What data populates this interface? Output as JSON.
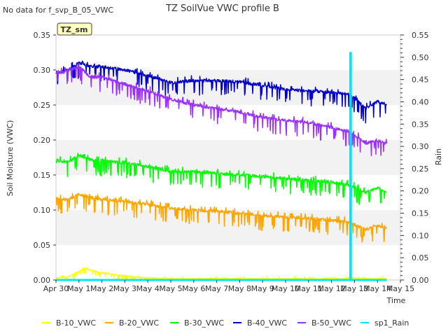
{
  "chart_data": {
    "type": "line",
    "title": "TZ SoilVue VWC profile B",
    "note": "No data for f_svp_B_05_VWC",
    "badge": "TZ_sm",
    "xlabel": "Time",
    "ylabel": "Soil Moisture (VWC)",
    "y2label": "Rain",
    "xlim": [
      0,
      15
    ],
    "ylim": [
      0,
      0.35
    ],
    "y2lim": [
      0,
      0.55
    ],
    "x_ticks": [
      "Apr 30",
      "May 1",
      "May 2",
      "May 3",
      "May 4",
      "May 5",
      "May 6",
      "May 7",
      "May 8",
      "May 9",
      "May 10",
      "May 11",
      "May 12",
      "May 13",
      "May 14",
      "May 15"
    ],
    "y_ticks": [
      "0.00",
      "0.05",
      "0.10",
      "0.15",
      "0.20",
      "0.25",
      "0.30",
      "0.35"
    ],
    "y2_ticks": [
      "0.00",
      "0.05",
      "0.10",
      "0.15",
      "0.20",
      "0.25",
      "0.30",
      "0.35",
      "0.40",
      "0.45",
      "0.50",
      "0.55"
    ],
    "grid": "horizontal bands",
    "legend_position": "bottom",
    "series": [
      {
        "name": "B-10_VWC",
        "color": "#ffff00",
        "axis": "left",
        "x": [
          0.0,
          0.5,
          1.0,
          1.2,
          1.5,
          2.0,
          2.5,
          3.0,
          3.5,
          4.0,
          5.0,
          6.0,
          8.0,
          10.0,
          12.0,
          14.4
        ],
        "y": [
          0.003,
          0.004,
          0.012,
          0.017,
          0.014,
          0.01,
          0.008,
          0.006,
          0.004,
          0.003,
          0.002,
          0.002,
          0.002,
          0.002,
          0.002,
          0.002
        ]
      },
      {
        "name": "B-20_VWC",
        "color": "#ffa500",
        "axis": "left",
        "x": [
          0.0,
          0.5,
          1.0,
          1.5,
          2.0,
          3.0,
          4.0,
          5.0,
          6.0,
          7.0,
          8.0,
          9.0,
          10.0,
          11.0,
          12.0,
          12.8,
          13.5,
          14.0,
          14.4
        ],
        "y": [
          0.117,
          0.115,
          0.122,
          0.118,
          0.115,
          0.112,
          0.108,
          0.102,
          0.1,
          0.098,
          0.095,
          0.092,
          0.09,
          0.088,
          0.085,
          0.082,
          0.072,
          0.078,
          0.075
        ]
      },
      {
        "name": "B-30_VWC",
        "color": "#00ff00",
        "axis": "left",
        "x": [
          0.0,
          0.5,
          1.0,
          1.5,
          2.0,
          3.0,
          4.0,
          5.0,
          6.0,
          7.0,
          8.0,
          9.0,
          10.0,
          11.0,
          12.0,
          12.8,
          13.5,
          14.0,
          14.4
        ],
        "y": [
          0.17,
          0.168,
          0.178,
          0.172,
          0.17,
          0.168,
          0.162,
          0.155,
          0.155,
          0.152,
          0.15,
          0.148,
          0.145,
          0.142,
          0.14,
          0.135,
          0.125,
          0.132,
          0.125
        ]
      },
      {
        "name": "B-40_VWC",
        "color": "#0000cd",
        "axis": "left",
        "x": [
          0.0,
          0.5,
          1.0,
          1.5,
          2.0,
          3.0,
          4.0,
          5.0,
          6.0,
          7.0,
          8.0,
          9.0,
          10.0,
          11.0,
          12.0,
          12.8,
          13.5,
          14.0,
          14.4
        ],
        "y": [
          0.296,
          0.3,
          0.31,
          0.305,
          0.305,
          0.3,
          0.292,
          0.282,
          0.285,
          0.285,
          0.283,
          0.278,
          0.272,
          0.27,
          0.268,
          0.265,
          0.245,
          0.255,
          0.25
        ]
      },
      {
        "name": "B-50_VWC",
        "color": "#9b30ff",
        "axis": "left",
        "x": [
          0.0,
          0.5,
          1.0,
          1.5,
          2.0,
          3.0,
          4.0,
          5.0,
          6.0,
          7.0,
          8.0,
          9.0,
          10.0,
          11.0,
          12.0,
          12.8,
          13.5,
          14.0,
          14.4
        ],
        "y": [
          0.295,
          0.298,
          0.305,
          0.29,
          0.29,
          0.28,
          0.27,
          0.258,
          0.25,
          0.245,
          0.24,
          0.232,
          0.228,
          0.225,
          0.218,
          0.212,
          0.195,
          0.2,
          0.195
        ]
      },
      {
        "name": "sp1_Rain",
        "color": "#00e5ff",
        "axis": "right",
        "x": [
          0.0,
          12.82,
          12.82,
          12.84,
          12.84,
          14.4
        ],
        "y": [
          0.0,
          0.0,
          0.51,
          0.51,
          0.0,
          0.0
        ]
      }
    ]
  }
}
